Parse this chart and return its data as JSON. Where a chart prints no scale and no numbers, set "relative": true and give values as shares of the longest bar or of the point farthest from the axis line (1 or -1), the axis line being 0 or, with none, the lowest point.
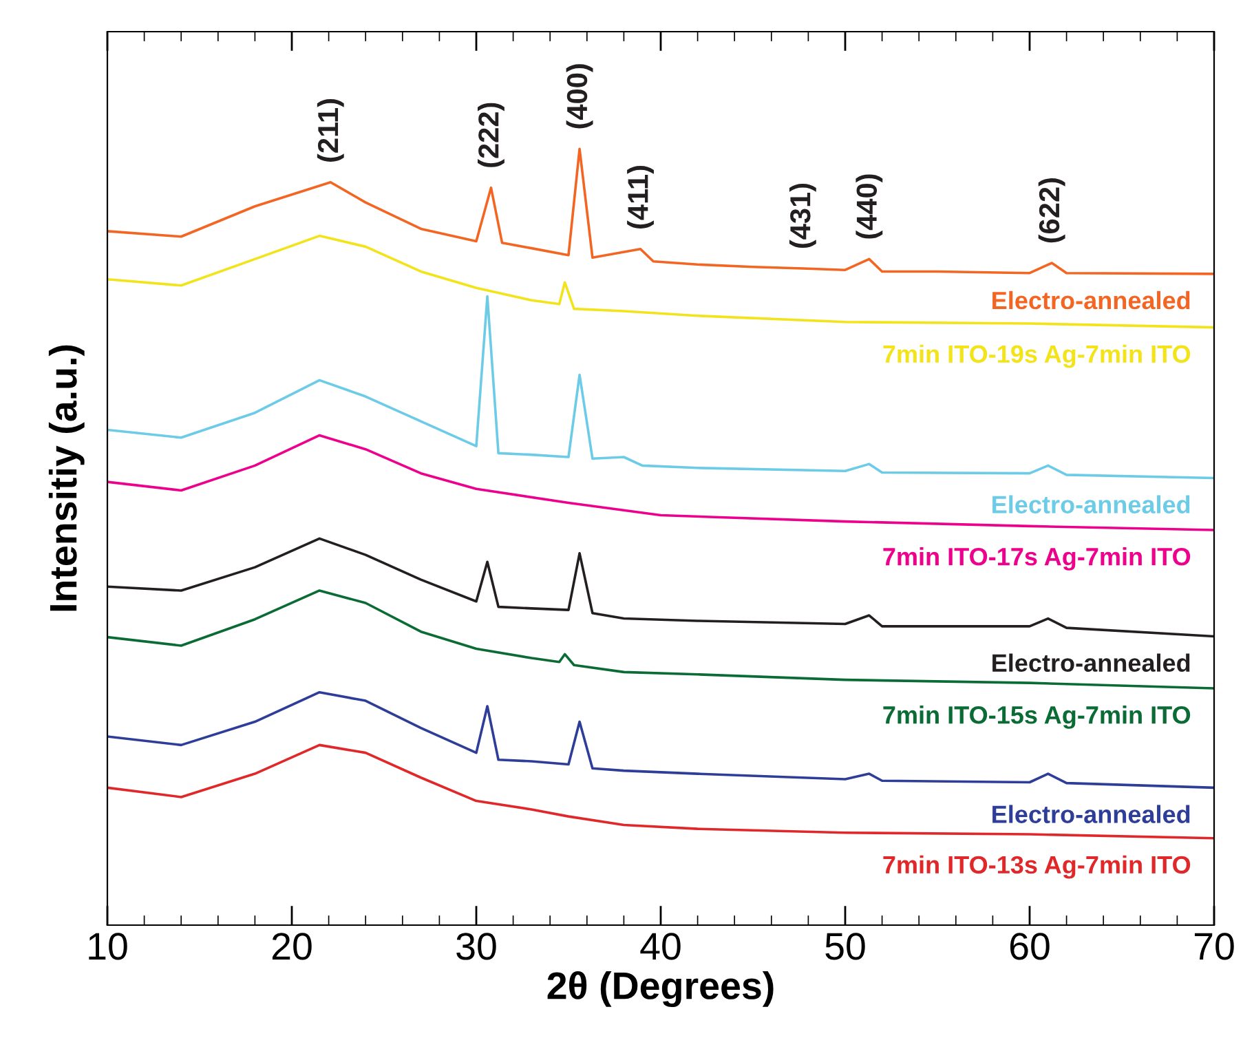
{
  "chart_data": {
    "type": "line",
    "relative": true,
    "xlabel": "2θ (Degrees)",
    "ylabel": "Intensitiy (a.u.)",
    "xlim": [
      10,
      70
    ],
    "xticks": [
      10,
      20,
      30,
      40,
      50,
      60,
      70
    ],
    "tick_labels": "x",
    "grid": false,
    "legend": false,
    "marker": "none",
    "line_style": "solid",
    "annotations": [
      {
        "text": "(211)",
        "x": 22.1,
        "y": 0.957
      },
      {
        "text": "(222)",
        "x": 30.8,
        "y": 0.95
      },
      {
        "text": "(400)",
        "x": 35.6,
        "y": 1
      },
      {
        "text": "(411)",
        "x": 38.9,
        "y": 0.871
      },
      {
        "text": "(431)",
        "x": 47.7,
        "y": 0.846
      },
      {
        "text": "(440)",
        "x": 51.3,
        "y": 0.858
      },
      {
        "text": "(622)",
        "x": 61.2,
        "y": 0.853
      }
    ],
    "series": [
      {
        "name": "Electro-annealed",
        "color": "#f26522",
        "x": [
          10,
          14,
          18,
          22.1,
          24,
          27,
          30,
          30.8,
          31.4,
          33,
          35,
          35.6,
          36.3,
          38.9,
          39.6,
          42,
          45,
          47.7,
          50,
          51.3,
          52,
          55,
          60,
          61.2,
          62,
          70
        ],
        "values": [
          0.894,
          0.887,
          0.926,
          0.957,
          0.931,
          0.897,
          0.881,
          0.95,
          0.879,
          0.872,
          0.863,
          1,
          0.86,
          0.871,
          0.855,
          0.851,
          0.848,
          0.846,
          0.844,
          0.858,
          0.842,
          0.842,
          0.84,
          0.853,
          0.84,
          0.839
        ]
      },
      {
        "name": "7min ITO-19s Ag-7min ITO",
        "color": "#f2e31b",
        "x": [
          10,
          14,
          18,
          21.5,
          24,
          27,
          30,
          33,
          34.5,
          34.8,
          35.3,
          38,
          42,
          50,
          60,
          70
        ],
        "values": [
          0.832,
          0.824,
          0.858,
          0.888,
          0.874,
          0.842,
          0.821,
          0.805,
          0.8,
          0.828,
          0.794,
          0.791,
          0.785,
          0.777,
          0.775,
          0.77
        ]
      },
      {
        "name": "Electro-annealed",
        "color": "#6ccbe6",
        "x": [
          10,
          14,
          18,
          21.5,
          24,
          27,
          30,
          30.6,
          31.2,
          33,
          35,
          35.6,
          36.3,
          38,
          39,
          42,
          50,
          51.3,
          52,
          60,
          61,
          62,
          70
        ],
        "values": [
          0.638,
          0.628,
          0.66,
          0.702,
          0.681,
          0.649,
          0.617,
          0.81,
          0.608,
          0.606,
          0.603,
          0.709,
          0.601,
          0.603,
          0.592,
          0.589,
          0.585,
          0.594,
          0.583,
          0.582,
          0.592,
          0.58,
          0.576
        ]
      },
      {
        "name": "7min ITO-17s Ag-7min ITO",
        "color": "#ec008c",
        "x": [
          10,
          14,
          18,
          21.5,
          24,
          27,
          30,
          35,
          40,
          50,
          60,
          70
        ],
        "values": [
          0.571,
          0.56,
          0.592,
          0.631,
          0.613,
          0.582,
          0.562,
          0.544,
          0.528,
          0.52,
          0.514,
          0.509
        ]
      },
      {
        "name": "Electro-annealed",
        "color": "#231f20",
        "x": [
          10,
          14,
          18,
          21.5,
          24,
          27,
          30,
          30.6,
          31.2,
          33,
          35,
          35.6,
          36.3,
          38,
          42,
          50,
          51.3,
          52,
          60,
          61,
          62,
          70
        ],
        "values": [
          0.436,
          0.431,
          0.461,
          0.498,
          0.477,
          0.445,
          0.417,
          0.468,
          0.41,
          0.408,
          0.406,
          0.479,
          0.402,
          0.395,
          0.392,
          0.388,
          0.399,
          0.385,
          0.385,
          0.395,
          0.383,
          0.372
        ]
      },
      {
        "name": "7min ITO-15s Ag-7min ITO",
        "color": "#0a6b35",
        "x": [
          10,
          14,
          18,
          21.5,
          24,
          27,
          30,
          33,
          34.5,
          34.8,
          35.3,
          38,
          42,
          50,
          60,
          70
        ],
        "values": [
          0.371,
          0.36,
          0.394,
          0.431,
          0.415,
          0.378,
          0.356,
          0.344,
          0.339,
          0.349,
          0.335,
          0.326,
          0.323,
          0.316,
          0.312,
          0.305
        ]
      },
      {
        "name": "Electro-annealed",
        "color": "#2e3d98",
        "x": [
          10,
          14,
          18,
          21.5,
          24,
          27,
          30,
          30.6,
          31.2,
          33,
          35,
          35.6,
          36.3,
          38,
          42,
          50,
          51.3,
          52,
          60,
          61,
          62,
          70
        ],
        "values": [
          0.243,
          0.232,
          0.262,
          0.3,
          0.289,
          0.254,
          0.222,
          0.282,
          0.213,
          0.211,
          0.207,
          0.262,
          0.202,
          0.199,
          0.195,
          0.188,
          0.195,
          0.186,
          0.184,
          0.195,
          0.183,
          0.177
        ]
      },
      {
        "name": "7min ITO-13s Ag-7min ITO",
        "color": "#e0282a",
        "x": [
          10,
          14,
          18,
          21.5,
          24,
          27,
          30,
          33,
          35,
          38,
          42,
          50,
          60,
          70
        ],
        "values": [
          0.177,
          0.165,
          0.195,
          0.232,
          0.222,
          0.19,
          0.16,
          0.149,
          0.14,
          0.129,
          0.124,
          0.119,
          0.117,
          0.112
        ]
      }
    ]
  }
}
